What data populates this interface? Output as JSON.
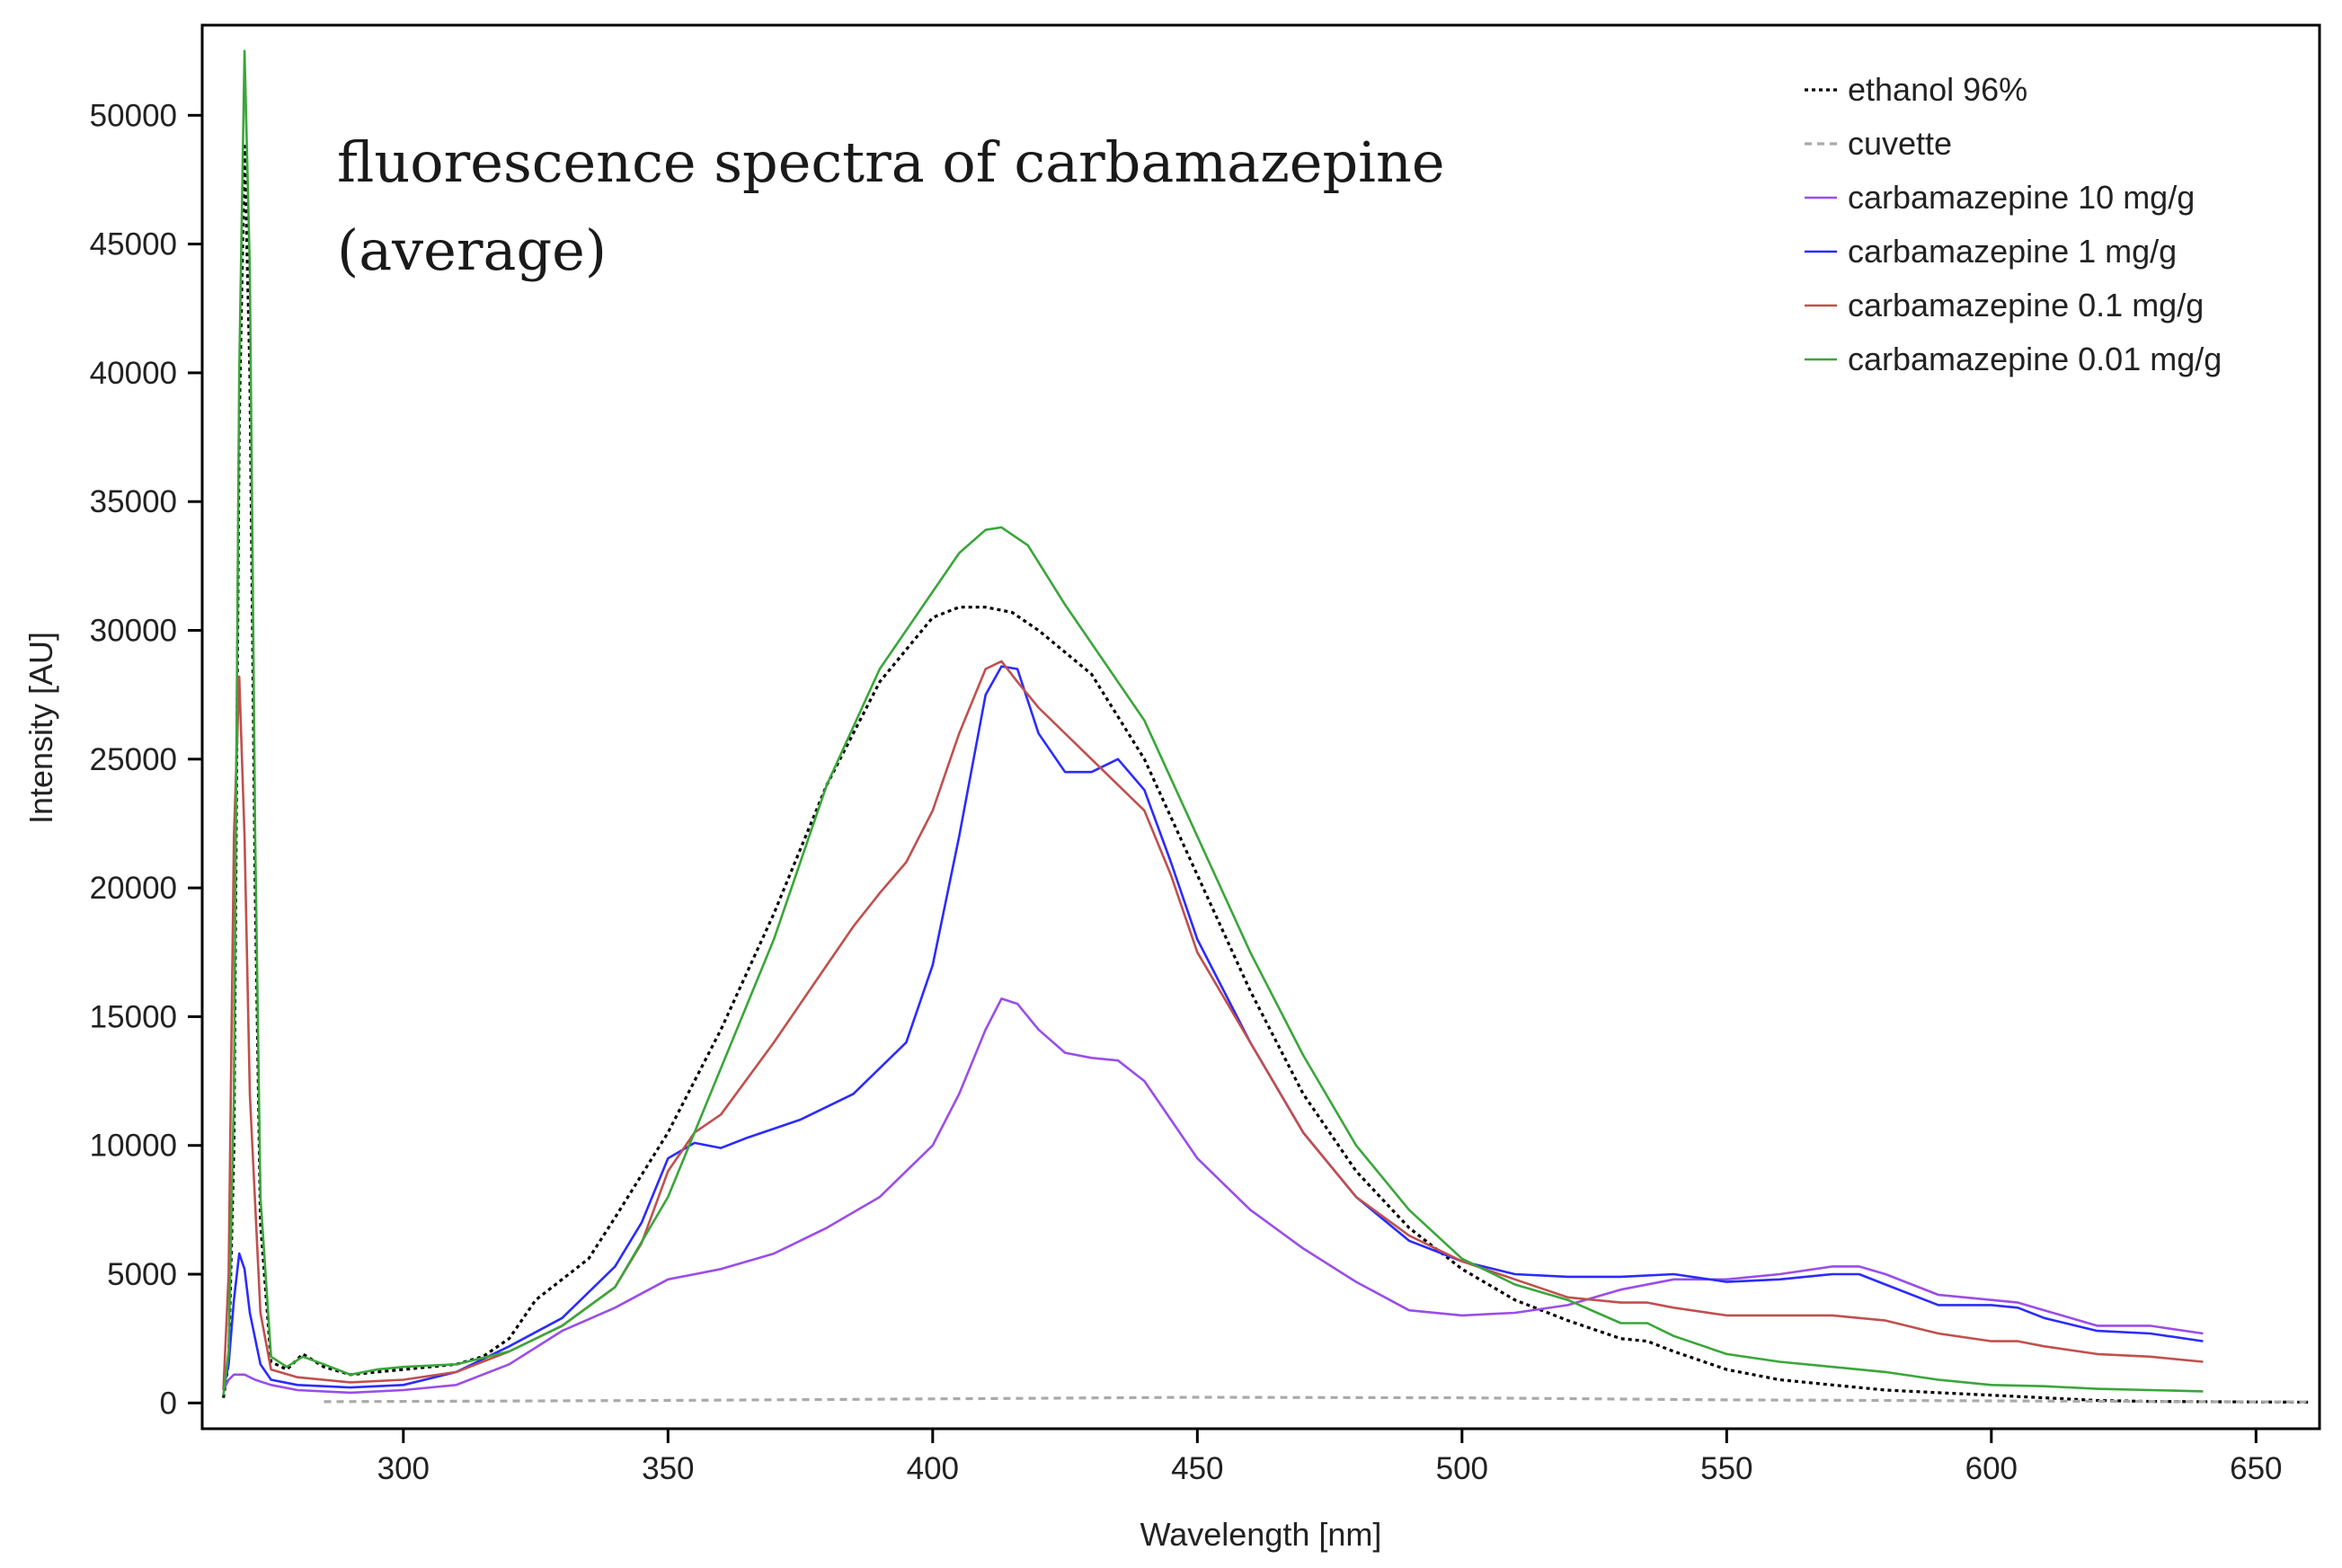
{
  "chart_data": {
    "type": "line",
    "title": "fluorescence spectra of carbamazepine",
    "subtitle": "(average)",
    "xlabel": "Wavelength [nm]",
    "ylabel": "Intensity [AU]",
    "xlim": [
      262,
      662
    ],
    "ylim": [
      -1000,
      53500
    ],
    "x_ticks": [
      300,
      350,
      400,
      450,
      500,
      550,
      600,
      650
    ],
    "x_tick_labels": [
      "300",
      "350",
      "400",
      "450",
      "500",
      "550",
      "600",
      "650"
    ],
    "y_ticks": [
      0,
      5000,
      10000,
      15000,
      20000,
      25000,
      30000,
      35000,
      40000,
      45000,
      50000
    ],
    "y_tick_labels": [
      "0",
      "5000",
      "10000",
      "15000",
      "20000",
      "25000",
      "30000",
      "35000",
      "40000",
      "45000",
      "50000"
    ],
    "grid": false,
    "legend_position": "top-right",
    "series": [
      {
        "name": "ethanol 96%",
        "color": "#000000",
        "dash": "dotted",
        "points": [
          [
            266,
            200
          ],
          [
            267,
            1600
          ],
          [
            268,
            10000
          ],
          [
            269,
            38000
          ],
          [
            270,
            48800
          ],
          [
            271,
            40000
          ],
          [
            272,
            20000
          ],
          [
            273,
            7000
          ],
          [
            275,
            1600
          ],
          [
            278,
            1300
          ],
          [
            281,
            1900
          ],
          [
            285,
            1400
          ],
          [
            290,
            1100
          ],
          [
            295,
            1200
          ],
          [
            300,
            1300
          ],
          [
            305,
            1400
          ],
          [
            310,
            1500
          ],
          [
            315,
            1800
          ],
          [
            320,
            2500
          ],
          [
            325,
            4000
          ],
          [
            330,
            4800
          ],
          [
            335,
            5600
          ],
          [
            340,
            7200
          ],
          [
            350,
            10500
          ],
          [
            360,
            14500
          ],
          [
            370,
            19000
          ],
          [
            380,
            24000
          ],
          [
            390,
            28000
          ],
          [
            400,
            30500
          ],
          [
            405,
            30900
          ],
          [
            410,
            30900
          ],
          [
            415,
            30700
          ],
          [
            420,
            30000
          ],
          [
            430,
            28300
          ],
          [
            440,
            25000
          ],
          [
            450,
            20500
          ],
          [
            460,
            16000
          ],
          [
            470,
            12000
          ],
          [
            480,
            9000
          ],
          [
            490,
            6800
          ],
          [
            500,
            5200
          ],
          [
            510,
            4000
          ],
          [
            520,
            3200
          ],
          [
            530,
            2500
          ],
          [
            535,
            2400
          ],
          [
            540,
            2000
          ],
          [
            550,
            1300
          ],
          [
            560,
            900
          ],
          [
            570,
            700
          ],
          [
            580,
            500
          ],
          [
            590,
            400
          ],
          [
            600,
            300
          ],
          [
            610,
            200
          ],
          [
            620,
            100
          ],
          [
            630,
            60
          ],
          [
            640,
            50
          ],
          [
            660,
            30
          ]
        ]
      },
      {
        "name": "cuvette",
        "color": "#aaaaaa",
        "dash": "dashed",
        "points": [
          [
            285,
            50
          ],
          [
            300,
            60
          ],
          [
            350,
            100
          ],
          [
            400,
            160
          ],
          [
            450,
            220
          ],
          [
            500,
            200
          ],
          [
            550,
            120
          ],
          [
            600,
            80
          ],
          [
            640,
            50
          ],
          [
            660,
            40
          ]
        ]
      },
      {
        "name": "carbamazepine 10 mg/g",
        "color": "#9b4de8",
        "dash": "solid",
        "points": [
          [
            266,
            500
          ],
          [
            267,
            900
          ],
          [
            268,
            1100
          ],
          [
            270,
            1100
          ],
          [
            272,
            900
          ],
          [
            275,
            700
          ],
          [
            280,
            500
          ],
          [
            290,
            400
          ],
          [
            300,
            500
          ],
          [
            310,
            700
          ],
          [
            320,
            1500
          ],
          [
            330,
            2800
          ],
          [
            340,
            3700
          ],
          [
            350,
            4800
          ],
          [
            360,
            5200
          ],
          [
            370,
            5800
          ],
          [
            380,
            6800
          ],
          [
            390,
            8000
          ],
          [
            400,
            10000
          ],
          [
            405,
            12000
          ],
          [
            410,
            14500
          ],
          [
            413,
            15700
          ],
          [
            416,
            15500
          ],
          [
            420,
            14500
          ],
          [
            425,
            13600
          ],
          [
            430,
            13400
          ],
          [
            435,
            13300
          ],
          [
            440,
            12500
          ],
          [
            445,
            11000
          ],
          [
            450,
            9500
          ],
          [
            460,
            7500
          ],
          [
            470,
            6000
          ],
          [
            480,
            4700
          ],
          [
            490,
            3600
          ],
          [
            500,
            3400
          ],
          [
            510,
            3500
          ],
          [
            520,
            3800
          ],
          [
            530,
            4400
          ],
          [
            540,
            4800
          ],
          [
            550,
            4800
          ],
          [
            560,
            5000
          ],
          [
            570,
            5300
          ],
          [
            575,
            5300
          ],
          [
            580,
            5000
          ],
          [
            590,
            4200
          ],
          [
            600,
            4000
          ],
          [
            605,
            3900
          ],
          [
            610,
            3600
          ],
          [
            620,
            3000
          ],
          [
            630,
            3000
          ],
          [
            640,
            2700
          ]
        ]
      },
      {
        "name": "carbamazepine 1 mg/g",
        "color": "#2b2bff",
        "dash": "solid",
        "points": [
          [
            266,
            500
          ],
          [
            267,
            1500
          ],
          [
            268,
            4000
          ],
          [
            269,
            5800
          ],
          [
            270,
            5200
          ],
          [
            271,
            3500
          ],
          [
            273,
            1500
          ],
          [
            275,
            900
          ],
          [
            280,
            700
          ],
          [
            290,
            600
          ],
          [
            300,
            700
          ],
          [
            310,
            1200
          ],
          [
            320,
            2200
          ],
          [
            330,
            3300
          ],
          [
            340,
            5300
          ],
          [
            345,
            7000
          ],
          [
            350,
            9500
          ],
          [
            355,
            10100
          ],
          [
            360,
            9900
          ],
          [
            365,
            10300
          ],
          [
            375,
            11000
          ],
          [
            385,
            12000
          ],
          [
            395,
            14000
          ],
          [
            400,
            17000
          ],
          [
            405,
            22000
          ],
          [
            410,
            27500
          ],
          [
            413,
            28600
          ],
          [
            416,
            28500
          ],
          [
            420,
            26000
          ],
          [
            425,
            24500
          ],
          [
            430,
            24500
          ],
          [
            435,
            25000
          ],
          [
            440,
            23800
          ],
          [
            445,
            21000
          ],
          [
            450,
            18000
          ],
          [
            460,
            14000
          ],
          [
            470,
            10500
          ],
          [
            480,
            8000
          ],
          [
            490,
            6300
          ],
          [
            500,
            5500
          ],
          [
            510,
            5000
          ],
          [
            520,
            4900
          ],
          [
            530,
            4900
          ],
          [
            540,
            5000
          ],
          [
            550,
            4700
          ],
          [
            560,
            4800
          ],
          [
            570,
            5000
          ],
          [
            575,
            5000
          ],
          [
            580,
            4600
          ],
          [
            590,
            3800
          ],
          [
            600,
            3800
          ],
          [
            605,
            3700
          ],
          [
            610,
            3300
          ],
          [
            620,
            2800
          ],
          [
            630,
            2700
          ],
          [
            640,
            2400
          ]
        ]
      },
      {
        "name": "carbamazepine 0.1 mg/g",
        "color": "#c0504d",
        "dash": "solid",
        "points": [
          [
            266,
            500
          ],
          [
            267,
            5000
          ],
          [
            268,
            22000
          ],
          [
            269,
            28200
          ],
          [
            270,
            22000
          ],
          [
            271,
            12000
          ],
          [
            273,
            3500
          ],
          [
            275,
            1300
          ],
          [
            280,
            1000
          ],
          [
            290,
            800
          ],
          [
            300,
            900
          ],
          [
            310,
            1200
          ],
          [
            320,
            2000
          ],
          [
            330,
            3000
          ],
          [
            340,
            4500
          ],
          [
            345,
            6200
          ],
          [
            350,
            9000
          ],
          [
            355,
            10500
          ],
          [
            360,
            11200
          ],
          [
            370,
            14000
          ],
          [
            380,
            17000
          ],
          [
            385,
            18500
          ],
          [
            390,
            19800
          ],
          [
            395,
            21000
          ],
          [
            400,
            23000
          ],
          [
            405,
            26000
          ],
          [
            410,
            28500
          ],
          [
            413,
            28800
          ],
          [
            416,
            28000
          ],
          [
            420,
            27000
          ],
          [
            430,
            25000
          ],
          [
            440,
            23000
          ],
          [
            445,
            20500
          ],
          [
            450,
            17500
          ],
          [
            460,
            14000
          ],
          [
            470,
            10500
          ],
          [
            480,
            8000
          ],
          [
            490,
            6500
          ],
          [
            500,
            5500
          ],
          [
            510,
            4800
          ],
          [
            520,
            4100
          ],
          [
            530,
            3900
          ],
          [
            535,
            3900
          ],
          [
            540,
            3700
          ],
          [
            550,
            3400
          ],
          [
            560,
            3400
          ],
          [
            570,
            3400
          ],
          [
            580,
            3200
          ],
          [
            590,
            2700
          ],
          [
            600,
            2400
          ],
          [
            605,
            2400
          ],
          [
            610,
            2200
          ],
          [
            620,
            1900
          ],
          [
            630,
            1800
          ],
          [
            640,
            1600
          ]
        ]
      },
      {
        "name": "carbamazepine 0.01 mg/g",
        "color": "#3aa63a",
        "dash": "solid",
        "points": [
          [
            266,
            300
          ],
          [
            267,
            2000
          ],
          [
            268,
            12000
          ],
          [
            269,
            40000
          ],
          [
            270,
            52500
          ],
          [
            271,
            44000
          ],
          [
            272,
            22000
          ],
          [
            273,
            8000
          ],
          [
            275,
            1800
          ],
          [
            278,
            1400
          ],
          [
            281,
            1800
          ],
          [
            285,
            1500
          ],
          [
            290,
            1100
          ],
          [
            295,
            1300
          ],
          [
            300,
            1400
          ],
          [
            310,
            1500
          ],
          [
            320,
            2000
          ],
          [
            330,
            3000
          ],
          [
            340,
            4500
          ],
          [
            350,
            8000
          ],
          [
            360,
            13000
          ],
          [
            370,
            18000
          ],
          [
            380,
            24000
          ],
          [
            390,
            28500
          ],
          [
            400,
            31500
          ],
          [
            405,
            33000
          ],
          [
            410,
            33900
          ],
          [
            413,
            34000
          ],
          [
            418,
            33300
          ],
          [
            425,
            31000
          ],
          [
            440,
            26500
          ],
          [
            450,
            22000
          ],
          [
            460,
            17500
          ],
          [
            470,
            13500
          ],
          [
            480,
            10000
          ],
          [
            490,
            7500
          ],
          [
            500,
            5600
          ],
          [
            510,
            4600
          ],
          [
            520,
            4000
          ],
          [
            530,
            3100
          ],
          [
            535,
            3100
          ],
          [
            540,
            2600
          ],
          [
            550,
            1900
          ],
          [
            560,
            1600
          ],
          [
            570,
            1400
          ],
          [
            580,
            1200
          ],
          [
            590,
            900
          ],
          [
            600,
            700
          ],
          [
            610,
            650
          ],
          [
            620,
            550
          ],
          [
            630,
            500
          ],
          [
            640,
            450
          ]
        ]
      }
    ]
  }
}
